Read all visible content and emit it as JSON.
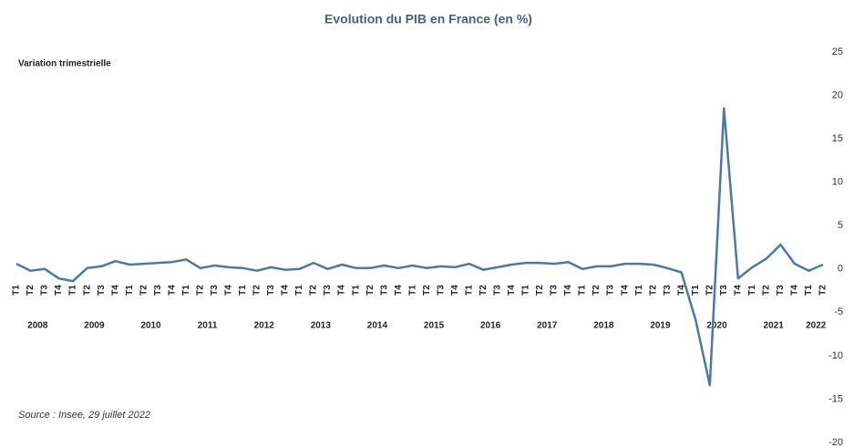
{
  "chart_data": {
    "type": "line",
    "title": "Evolution du PIB en France (en %)",
    "subtitle": "Variation trimestrielle",
    "source": "Source : Insee, 29 juillet 2022",
    "categories": [
      "T1",
      "T2",
      "T3",
      "T4",
      "T1",
      "T2",
      "T3",
      "T4",
      "T1",
      "T2",
      "T3",
      "T4",
      "T1",
      "T2",
      "T3",
      "T4",
      "T1",
      "T2",
      "T3",
      "T4",
      "T1",
      "T2",
      "T3",
      "T4",
      "T1",
      "T2",
      "T3",
      "T4",
      "T1",
      "T2",
      "T3",
      "T4",
      "T1",
      "T2",
      "T3",
      "T4",
      "T1",
      "T2",
      "T3",
      "T4",
      "T1",
      "T2",
      "T3",
      "T4",
      "T1",
      "T2",
      "T3",
      "T4",
      "T1",
      "T2",
      "T3",
      "T4",
      "T1",
      "T2",
      "T3",
      "T4",
      "T1",
      "T2"
    ],
    "years": [
      "2008",
      "2009",
      "2010",
      "2011",
      "2012",
      "2013",
      "2014",
      "2015",
      "2016",
      "2017",
      "2018",
      "2019",
      "2020",
      "2021",
      "2022"
    ],
    "series": [
      {
        "color": "#4a7a9c",
        "values": [
          0.6,
          -0.2,
          0.0,
          -1.1,
          -1.4,
          0.1,
          0.3,
          0.9,
          0.5,
          0.6,
          0.7,
          0.8,
          1.1,
          0.1,
          0.4,
          0.2,
          0.1,
          -0.2,
          0.2,
          -0.1,
          0.0,
          0.7,
          0.0,
          0.5,
          0.1,
          0.1,
          0.4,
          0.1,
          0.4,
          0.1,
          0.3,
          0.2,
          0.6,
          -0.1,
          0.2,
          0.5,
          0.7,
          0.7,
          0.6,
          0.8,
          0.0,
          0.3,
          0.3,
          0.6,
          0.6,
          0.5,
          0.1,
          -0.4,
          -5.9,
          -13.4,
          18.5,
          -1.1,
          0.2,
          1.2,
          2.8,
          0.6,
          -0.2,
          0.5
        ]
      }
    ],
    "ylim": [
      -20,
      25
    ],
    "yticks": [
      -20,
      -15,
      -10,
      -5,
      0,
      5,
      10,
      15,
      20,
      25
    ]
  }
}
